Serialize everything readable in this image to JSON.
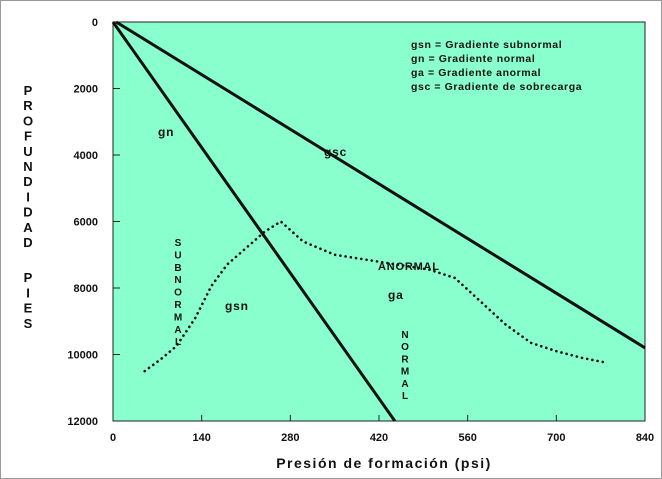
{
  "chart_data": {
    "type": "line",
    "xlabel": "Presión de formación (psi)",
    "ylabel_words": [
      "PROFUNDIDAD",
      "PIES"
    ],
    "xlim": [
      0,
      840
    ],
    "ylim": [
      0,
      12000
    ],
    "y_inverted": true,
    "x_ticks": [
      "0",
      "140",
      "280",
      "420",
      "560",
      "700",
      "840"
    ],
    "x_tick_values": [
      0,
      140,
      280,
      420,
      560,
      700,
      840
    ],
    "y_ticks": [
      "0",
      "2000",
      "4000",
      "6000",
      "8000",
      "10000",
      "12000"
    ],
    "y_tick_values": [
      0,
      2000,
      4000,
      6000,
      8000,
      10000,
      12000
    ],
    "background_color": "#88FFCC",
    "line_color": "#111111",
    "grid": false,
    "legend_position": "top-right",
    "legend": [
      "gsn = Gradiente subnormal",
      "gn = Gradiente normal",
      "ga = Gradiente anormal",
      "gsc = Gradiente de sobrecarga"
    ],
    "series": [
      {
        "name": "gn",
        "style": "solid",
        "x": [
          0,
          445
        ],
        "y": [
          0,
          12000
        ]
      },
      {
        "name": "gsc",
        "style": "solid",
        "x": [
          5,
          840
        ],
        "y": [
          0,
          9800
        ]
      },
      {
        "name": "gsn",
        "style": "dotted",
        "x": [
          50,
          75,
          100,
          130,
          155,
          180,
          210,
          240,
          265,
          300,
          350,
          400,
          450,
          500,
          540,
          580,
          620,
          660,
          700,
          740,
          780
        ],
        "y": [
          10500,
          10150,
          9750,
          8900,
          7950,
          7300,
          6800,
          6300,
          6000,
          6600,
          7000,
          7150,
          7300,
          7450,
          7700,
          8400,
          9100,
          9650,
          9900,
          10100,
          10250
        ]
      }
    ],
    "annotations": {
      "gn": "gn",
      "gsc": "gsc",
      "gsn": "gsn",
      "ga": "ga",
      "anormal": "ANORMAL",
      "subnormal": "SUBNORMAL",
      "normal": "NORMAL"
    }
  }
}
